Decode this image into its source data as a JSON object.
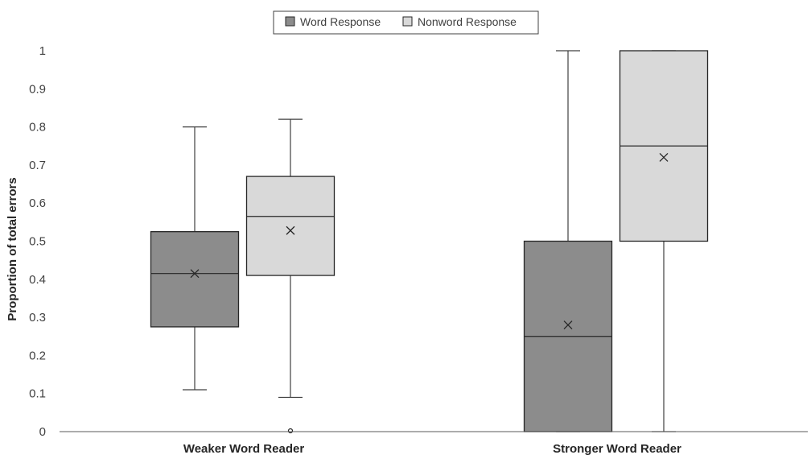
{
  "chart_data": {
    "type": "box",
    "ylabel": "Proportion of total errors",
    "ylim": [
      0,
      1
    ],
    "yticks": [
      "0",
      "0.1",
      "0.2",
      "0.3",
      "0.4",
      "0.5",
      "0.6",
      "0.7",
      "0.8",
      "0.9",
      "1"
    ],
    "categories": [
      "Weaker Word Reader",
      "Stronger Word Reader"
    ],
    "legend_position": "top-center",
    "series": [
      {
        "name": "Word Response",
        "color": "#8c8c8c",
        "boxes": [
          {
            "min": 0.11,
            "q1": 0.275,
            "median": 0.415,
            "q3": 0.525,
            "max": 0.8,
            "mean": 0.415,
            "outliers": []
          },
          {
            "min": 0.0,
            "q1": 0.0,
            "median": 0.25,
            "q3": 0.5,
            "max": 1.0,
            "mean": 0.28,
            "outliers": []
          }
        ]
      },
      {
        "name": "Nonword Response",
        "color": "#d9d9d9",
        "boxes": [
          {
            "min": 0.09,
            "q1": 0.41,
            "median": 0.565,
            "q3": 0.67,
            "max": 0.82,
            "mean": 0.528,
            "outliers": [
              0.0
            ]
          },
          {
            "min": 0.0,
            "q1": 0.5,
            "median": 0.75,
            "q3": 1.0,
            "max": 1.0,
            "mean": 0.72,
            "outliers": []
          }
        ]
      }
    ]
  }
}
